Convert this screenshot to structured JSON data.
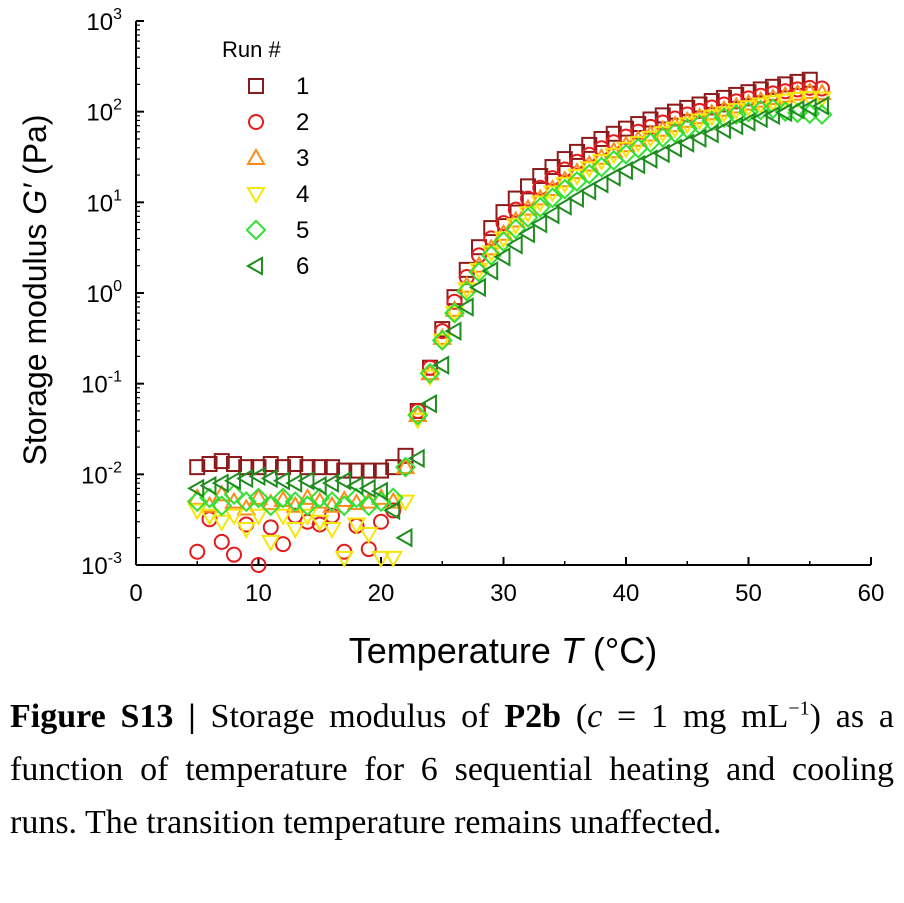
{
  "chart_data": {
    "type": "scatter",
    "ylabel_prefix": "Storage modulus ",
    "ylabel_var": "G′",
    "ylabel_unit": " (Pa)",
    "xlabel_prefix": "Temperature ",
    "xlabel_var": "T",
    "xlabel_unit": " (°C)",
    "xlim": [
      0,
      60
    ],
    "xticks": [
      0,
      10,
      20,
      30,
      40,
      50,
      60
    ],
    "ylim_log10": [
      -3,
      3
    ],
    "yscale": "log",
    "yticks_exp": [
      -3,
      -2,
      -1,
      0,
      1,
      2,
      3
    ],
    "ytick_base": "10",
    "legend_title": "Run #",
    "legend_position": "top-left",
    "series": [
      {
        "name": "1",
        "marker": "square",
        "color": "#8b1a1a",
        "x": [
          5,
          6,
          7,
          8,
          9,
          10,
          11,
          12,
          13,
          14,
          15,
          16,
          17,
          18,
          19,
          20,
          21,
          22,
          23,
          24,
          25,
          26,
          27,
          28,
          29,
          30,
          31,
          32,
          33,
          34,
          35,
          36,
          37,
          38,
          39,
          40,
          41,
          42,
          43,
          44,
          45,
          46,
          47,
          48,
          49,
          50,
          51,
          52,
          53,
          54,
          55
        ],
        "y": [
          0.012,
          0.013,
          0.014,
          0.013,
          0.012,
          0.012,
          0.013,
          0.012,
          0.013,
          0.012,
          0.012,
          0.012,
          0.011,
          0.011,
          0.011,
          0.011,
          0.012,
          0.016,
          0.05,
          0.15,
          0.4,
          0.9,
          1.8,
          3.2,
          5.2,
          7.8,
          11,
          15,
          19.5,
          24.5,
          30,
          36,
          43,
          50,
          57,
          65,
          73,
          82,
          91,
          100,
          110,
          120,
          131,
          142,
          153,
          164,
          176,
          188,
          200,
          213,
          225
        ]
      },
      {
        "name": "2",
        "marker": "circle",
        "color": "#e41a1c",
        "x": [
          5,
          6,
          7,
          8,
          9,
          10,
          11,
          12,
          13,
          14,
          15,
          16,
          17,
          18,
          19,
          20,
          21,
          22,
          23,
          24,
          25,
          26,
          27,
          28,
          29,
          30,
          31,
          32,
          33,
          34,
          35,
          36,
          37,
          38,
          39,
          40,
          41,
          42,
          43,
          44,
          45,
          46,
          47,
          48,
          49,
          50,
          51,
          52,
          53,
          54,
          55,
          56
        ],
        "y": [
          0.0014,
          0.0032,
          0.0018,
          0.0013,
          0.0028,
          0.001,
          0.0026,
          0.0017,
          0.0035,
          0.003,
          0.0028,
          0.0035,
          0.0014,
          0.0027,
          0.0015,
          0.003,
          0.004,
          0.012,
          0.05,
          0.15,
          0.38,
          0.8,
          1.5,
          2.6,
          4,
          5.9,
          8.3,
          11,
          14.5,
          18.5,
          23,
          28,
          33.5,
          39.5,
          46,
          53,
          60,
          68,
          76,
          84,
          93,
          102,
          111,
          120,
          130,
          140,
          150,
          159,
          168,
          176,
          183,
          180
        ]
      },
      {
        "name": "3",
        "marker": "triangle-up",
        "color": "#ff8c1a",
        "x": [
          5,
          6,
          7,
          8,
          9,
          10,
          11,
          12,
          13,
          14,
          15,
          16,
          17,
          18,
          19,
          20,
          21,
          22,
          23,
          24,
          25,
          26,
          27,
          28,
          29,
          30,
          31,
          32,
          33,
          34,
          35,
          36,
          37,
          38,
          39,
          40,
          41,
          42,
          43,
          44,
          45,
          46,
          47,
          48,
          49,
          50,
          51,
          52,
          53,
          54,
          55,
          56
        ],
        "y": [
          0.0055,
          0.0045,
          0.006,
          0.005,
          0.0042,
          0.0055,
          0.0048,
          0.0052,
          0.0045,
          0.0055,
          0.005,
          0.0045,
          0.0052,
          0.0048,
          0.005,
          0.0055,
          0.005,
          0.012,
          0.045,
          0.13,
          0.32,
          0.65,
          1.2,
          2,
          3.1,
          4.5,
          6.3,
          8.5,
          11,
          14,
          17.5,
          21.5,
          26,
          31,
          36.5,
          42.5,
          49,
          56,
          63,
          71,
          79,
          87,
          96,
          105,
          114,
          123,
          132,
          141,
          150,
          158,
          165,
          160
        ]
      },
      {
        "name": "4",
        "marker": "triangle-down",
        "color": "#f5e60a",
        "x": [
          5,
          6,
          7,
          8,
          9,
          10,
          11,
          12,
          13,
          14,
          15,
          16,
          17,
          18,
          19,
          20,
          21,
          22,
          23,
          24,
          25,
          26,
          27,
          28,
          29,
          30,
          31,
          32,
          33,
          34,
          35,
          36,
          37,
          38,
          39,
          40,
          41,
          42,
          43,
          44,
          45,
          46,
          47,
          48,
          49,
          50,
          51,
          52,
          53,
          54,
          55,
          56
        ],
        "y": [
          0.004,
          0.0035,
          0.003,
          0.0035,
          0.0025,
          0.0035,
          0.0018,
          0.0035,
          0.0025,
          0.0035,
          0.003,
          0.0025,
          0.0012,
          0.0028,
          0.0022,
          0.0012,
          0.0012,
          0.005,
          0.04,
          0.12,
          0.3,
          0.6,
          1.1,
          1.8,
          2.8,
          4,
          5.6,
          7.6,
          10,
          12.8,
          16,
          19.6,
          23.8,
          28.5,
          33.5,
          39,
          45,
          51.5,
          58,
          65,
          72.5,
          80,
          88,
          96,
          104,
          112,
          120,
          127,
          133,
          138,
          142,
          140
        ]
      },
      {
        "name": "5",
        "marker": "diamond",
        "color": "#33e033",
        "x": [
          5,
          6,
          7,
          8,
          9,
          10,
          11,
          12,
          13,
          14,
          15,
          16,
          17,
          18,
          19,
          20,
          21,
          22,
          23,
          24,
          25,
          26,
          27,
          28,
          29,
          30,
          31,
          32,
          33,
          34,
          35,
          36,
          37,
          38,
          39,
          40,
          41,
          42,
          43,
          44,
          45,
          46,
          47,
          48,
          49,
          50,
          51,
          52,
          53,
          54,
          55,
          56
        ],
        "y": [
          0.005,
          0.0055,
          0.0045,
          0.006,
          0.005,
          0.0055,
          0.0045,
          0.0055,
          0.005,
          0.0045,
          0.0055,
          0.005,
          0.0045,
          0.0055,
          0.0045,
          0.005,
          0.0055,
          0.012,
          0.045,
          0.13,
          0.3,
          0.6,
          1.05,
          1.7,
          2.6,
          3.7,
          5.1,
          6.8,
          8.8,
          11.2,
          14,
          17,
          20.5,
          24.5,
          29,
          34,
          39.5,
          45.5,
          52,
          58.5,
          65,
          72,
          79,
          86,
          93,
          99,
          104,
          108,
          100,
          97,
          95,
          93
        ]
      },
      {
        "name": "6",
        "marker": "triangle-left",
        "color": "#1e8c1e",
        "x": [
          5,
          6,
          7,
          8,
          9,
          10,
          11,
          12,
          13,
          14,
          15,
          16,
          17,
          18,
          19,
          20,
          21,
          22,
          23,
          24,
          25,
          26,
          27,
          28,
          29,
          30,
          31,
          32,
          33,
          34,
          35,
          36,
          37,
          38,
          39,
          40,
          41,
          42,
          43,
          44,
          45,
          46,
          47,
          48,
          49,
          50,
          51,
          52,
          53,
          54,
          55,
          56
        ],
        "y": [
          0.007,
          0.0075,
          0.008,
          0.0085,
          0.009,
          0.0095,
          0.009,
          0.0085,
          0.008,
          0.0085,
          0.0075,
          0.008,
          0.0085,
          0.0075,
          0.007,
          0.0065,
          0.004,
          0.002,
          0.015,
          0.06,
          0.16,
          0.38,
          0.7,
          1.15,
          1.75,
          2.5,
          3.4,
          4.5,
          5.8,
          7.3,
          9.1,
          11.1,
          13.4,
          16,
          19,
          22.3,
          26,
          30,
          34.5,
          39.5,
          45,
          51,
          57,
          63.5,
          70,
          77,
          84,
          91,
          98,
          105,
          111,
          116
        ]
      }
    ]
  },
  "caption": {
    "label": "Figure S13 |",
    "text1": " Storage modulus of ",
    "compound": "P2b",
    "cond_open": " (",
    "cond_var": "c",
    "cond_rest": " = 1 mg mL",
    "cond_exp": "−1",
    "cond_close": ")",
    "text2": " as a function of temperature for 6 sequential heating and cooling runs. The transition temperature remains unaffected."
  }
}
